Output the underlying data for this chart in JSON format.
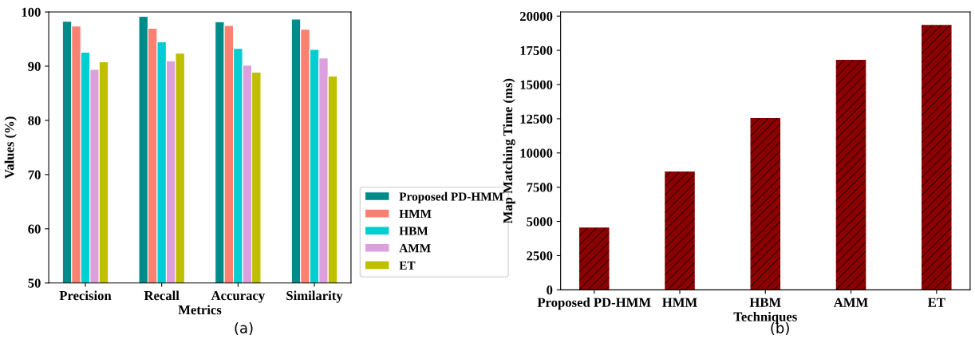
{
  "chart_data": [
    {
      "type": "bar",
      "xlabel": "Metrics",
      "ylabel": "Values (%)",
      "categories": [
        "Precision",
        "Recall",
        "Accuracy",
        "Similarity"
      ],
      "ylim": [
        50,
        100
      ],
      "yticks": [
        50,
        60,
        70,
        80,
        90,
        100
      ],
      "legend": "right",
      "grid": false,
      "annotations": [
        "(a)"
      ],
      "series": [
        {
          "name": "Proposed PD-HMM",
          "color": "#008b8b",
          "values": [
            98.3,
            99.2,
            98.2,
            98.7
          ]
        },
        {
          "name": "HMM",
          "color": "#fa8072",
          "values": [
            97.4,
            97.0,
            97.5,
            96.8
          ]
        },
        {
          "name": "HBM",
          "color": "#00ced1",
          "values": [
            92.6,
            94.5,
            93.3,
            93.1
          ]
        },
        {
          "name": "AMM",
          "color": "#dda0dd",
          "values": [
            89.4,
            91.0,
            90.2,
            91.5
          ]
        },
        {
          "name": "ET",
          "color": "#bfbf00",
          "values": [
            90.8,
            92.4,
            88.9,
            88.2
          ]
        }
      ]
    },
    {
      "type": "bar",
      "xlabel": "Techniques",
      "ylabel": "Map Matching Time (ms)",
      "categories": [
        "Proposed PD-HMM",
        "HMM",
        "HBM",
        "AMM",
        "ET"
      ],
      "values": [
        4550,
        8650,
        12550,
        16800,
        19350
      ],
      "color": "#8b0000",
      "ylim": [
        0,
        20300
      ],
      "yticks": [
        0,
        2500,
        5000,
        7500,
        10000,
        12500,
        15000,
        17500,
        20000
      ],
      "grid": false,
      "annotations": [
        "(b)"
      ]
    }
  ]
}
